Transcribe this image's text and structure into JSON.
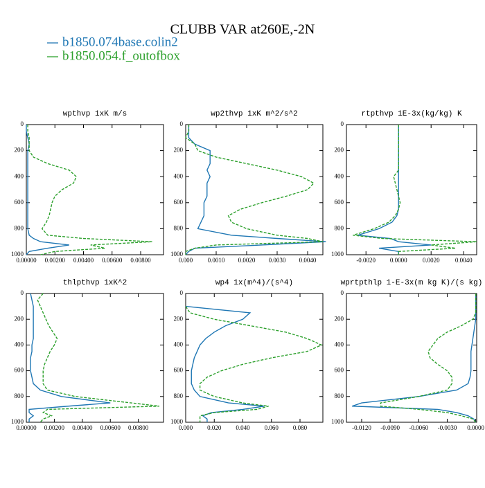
{
  "title": "CLUBB VAR at260E,-2N",
  "legend": [
    {
      "name": "b1850.074base.colin2",
      "color": "#1f77b4",
      "dashed": false
    },
    {
      "name": "b1850.054.f_outofbox",
      "color": "#2ca02c",
      "dashed": true
    }
  ],
  "chart_data": [
    {
      "type": "line",
      "title": "wpthvp   1xK m/s",
      "y": [
        0,
        50,
        100,
        150,
        200,
        250,
        300,
        350,
        400,
        450,
        500,
        550,
        600,
        650,
        700,
        750,
        800,
        850,
        875,
        900,
        925,
        950,
        975,
        1000
      ],
      "xlim": [
        0,
        0.0096
      ],
      "xticks": [
        {
          "value": 0,
          "label": "0.00000"
        },
        {
          "value": 0.002,
          "label": "0.00200"
        },
        {
          "value": 0.004,
          "label": "0.00400"
        },
        {
          "value": 0.006,
          "label": "0.00600"
        },
        {
          "value": 0.008,
          "label": "0.00800"
        }
      ],
      "ylim": [
        1000,
        0
      ],
      "yticks": [
        0,
        200,
        400,
        600,
        800,
        1000
      ],
      "series": [
        {
          "values": [
            0,
            0,
            0.0001,
            0.0002,
            0.0001,
            0.0001,
            0.0001,
            0.0001,
            0.0001,
            0.0001,
            0.0001,
            0.0001,
            0.0001,
            0.0001,
            0.0001,
            0.0001,
            0.0001,
            0.0002,
            0.0005,
            0.001,
            0.003,
            0.0015,
            0.0002,
            0
          ]
        },
        {
          "values": [
            0.0001,
            0.0001,
            0.0002,
            0.0002,
            0.0002,
            0.0005,
            0.0015,
            0.003,
            0.0035,
            0.0033,
            0.0025,
            0.002,
            0.0018,
            0.0017,
            0.0016,
            0.0014,
            0.0011,
            0.0015,
            0.004,
            0.0088,
            0.0045,
            0.0055,
            0.002,
            0.001
          ]
        }
      ]
    },
    {
      "type": "line",
      "title": "wp2thvp   1xK m^2/s^2",
      "y": [
        0,
        50,
        100,
        150,
        200,
        250,
        300,
        350,
        400,
        450,
        500,
        550,
        600,
        650,
        700,
        750,
        800,
        850,
        875,
        900,
        925,
        950,
        975,
        1000
      ],
      "xlim": [
        0,
        0.0045
      ],
      "xticks": [
        {
          "value": 0,
          "label": "0.000"
        },
        {
          "value": 0.001,
          "label": "0.0010"
        },
        {
          "value": 0.002,
          "label": "0.0020"
        },
        {
          "value": 0.003,
          "label": "0.0030"
        },
        {
          "value": 0.004,
          "label": "0.0040"
        }
      ],
      "ylim": [
        1000,
        0
      ],
      "yticks": [
        0,
        200,
        400,
        600,
        800,
        1000
      ],
      "series": [
        {
          "values": [
            0.0001,
            0.0001,
            0.0001,
            0.0003,
            0.0008,
            0.0008,
            0.0008,
            0.0007,
            0.0008,
            0.0007,
            0.0007,
            0.0007,
            0.0006,
            0.0006,
            0.0006,
            0.0005,
            0.0004,
            0.0015,
            0.003,
            0.0046,
            0.0025,
            0.0003,
            0.0001,
            0
          ]
        },
        {
          "values": [
            0.0001,
            0.0001,
            0,
            0.0003,
            0.0004,
            0.001,
            0.002,
            0.003,
            0.0038,
            0.0042,
            0.004,
            0.0033,
            0.0025,
            0.0018,
            0.0014,
            0.0015,
            0.002,
            0.003,
            0.004,
            0.0045,
            0.001,
            0.0003,
            0,
            0
          ]
        }
      ]
    },
    {
      "type": "line",
      "title": "rtpthvp   1E-3x(kg/kg) K",
      "y": [
        0,
        50,
        100,
        150,
        200,
        250,
        300,
        350,
        400,
        450,
        500,
        550,
        600,
        650,
        700,
        750,
        800,
        850,
        875,
        900,
        925,
        950,
        975,
        1000
      ],
      "xlim": [
        -0.0032,
        0.0048
      ],
      "xticks": [
        {
          "value": -0.002,
          "label": "-0.0020"
        },
        {
          "value": 0,
          "label": "0.0000"
        },
        {
          "value": 0.002,
          "label": "0.0020"
        },
        {
          "value": 0.004,
          "label": "0.0040"
        }
      ],
      "ylim": [
        1000,
        0
      ],
      "yticks": [
        0,
        200,
        400,
        600,
        800,
        1000
      ],
      "series": [
        {
          "values": [
            0,
            0,
            0,
            0,
            0,
            0,
            0,
            0,
            0,
            0,
            0,
            0,
            0,
            0,
            -0.0001,
            -0.0004,
            -0.0012,
            -0.0025,
            -0.0005,
            0,
            0.002,
            -0.0012,
            0,
            0
          ]
        },
        {
          "values": [
            0,
            0,
            0,
            0,
            0,
            0,
            0,
            0,
            -0.0003,
            -0.0002,
            -0.0001,
            0,
            0.0001,
            0,
            -0.0002,
            -0.0006,
            -0.0015,
            -0.0028,
            -0.001,
            0.0048,
            0.002,
            0.0035,
            0,
            0
          ]
        }
      ]
    },
    {
      "type": "line",
      "title": "thlpthvp   1xK^2",
      "y": [
        0,
        50,
        100,
        150,
        200,
        250,
        300,
        350,
        400,
        450,
        500,
        550,
        600,
        650,
        700,
        750,
        800,
        850,
        875,
        900,
        925,
        950,
        975,
        1000
      ],
      "xlim": [
        0,
        0.0098
      ],
      "xticks": [
        {
          "value": 0,
          "label": "0.00000"
        },
        {
          "value": 0.002,
          "label": "0.00200"
        },
        {
          "value": 0.004,
          "label": "0.00400"
        },
        {
          "value": 0.006,
          "label": "0.00600"
        },
        {
          "value": 0.008,
          "label": "0.00800"
        }
      ],
      "ylim": [
        1000,
        0
      ],
      "yticks": [
        0,
        200,
        400,
        600,
        800,
        1000
      ],
      "series": [
        {
          "values": [
            0.0003,
            0.0004,
            0.0005,
            0.0005,
            0.0005,
            0.0005,
            0.0005,
            0.0005,
            0.0004,
            0.0004,
            0.0003,
            0.0003,
            0.0003,
            0.0004,
            0.0005,
            0.001,
            0.0025,
            0.006,
            0.003,
            0.0002,
            0.0002,
            0.0005,
            0.0002,
            0.0002
          ]
        },
        {
          "values": [
            0.0012,
            0.0008,
            0.001,
            0.0012,
            0.0014,
            0.0016,
            0.0019,
            0.0022,
            0.002,
            0.0017,
            0.0015,
            0.0013,
            0.0012,
            0.0012,
            0.0012,
            0.0015,
            0.0035,
            0.0075,
            0.0095,
            0.0015,
            0.0012,
            0.0018,
            0.0012,
            0.001
          ]
        }
      ]
    },
    {
      "type": "line",
      "title": "wp4   1x(m^4)/(s^4)",
      "y": [
        0,
        50,
        100,
        150,
        200,
        250,
        300,
        350,
        400,
        450,
        500,
        550,
        600,
        650,
        700,
        750,
        800,
        850,
        875,
        900,
        925,
        950,
        975,
        1000
      ],
      "xlim": [
        0,
        0.096
      ],
      "xticks": [
        {
          "value": 0,
          "label": "0.000"
        },
        {
          "value": 0.02,
          "label": "0.020"
        },
        {
          "value": 0.04,
          "label": "0.040"
        },
        {
          "value": 0.06,
          "label": "0.060"
        },
        {
          "value": 0.08,
          "label": "0.080"
        }
      ],
      "ylim": [
        1000,
        0
      ],
      "yticks": [
        0,
        200,
        400,
        600,
        800,
        1000
      ],
      "series": [
        {
          "values": [
            null,
            null,
            0,
            0.045,
            0.04,
            0.028,
            0.02,
            0.014,
            0.01,
            0.008,
            0.006,
            0.005,
            0.004,
            0.004,
            0.004,
            0.006,
            0.01,
            0.03,
            0.055,
            0.04,
            0.018,
            0.012,
            0.015,
            0.015
          ]
        },
        {
          "values": [
            null,
            null,
            0,
            0.003,
            0.02,
            0.045,
            0.07,
            0.085,
            0.095,
            0.085,
            0.06,
            0.04,
            0.025,
            0.015,
            0.01,
            0.01,
            0.02,
            0.04,
            0.058,
            0.05,
            0.02,
            0.01,
            0.01,
            0.01
          ]
        }
      ]
    },
    {
      "type": "line",
      "title": "wprtpthlp   1-E-3x(m kg K)/(s kg)",
      "y": [
        0,
        50,
        100,
        150,
        200,
        250,
        300,
        350,
        400,
        450,
        500,
        550,
        600,
        650,
        700,
        750,
        800,
        850,
        875,
        900,
        925,
        950,
        975,
        1000
      ],
      "xlim": [
        -0.0136,
        0.0001
      ],
      "xticks": [
        {
          "value": -0.012,
          "label": "-0.0120"
        },
        {
          "value": -0.009,
          "label": "-0.0090"
        },
        {
          "value": -0.006,
          "label": "-0.0060"
        },
        {
          "value": -0.003,
          "label": "-0.0030"
        },
        {
          "value": 0,
          "label": "0.0000"
        }
      ],
      "ylim": [
        1000,
        0
      ],
      "yticks": [
        0,
        200,
        400,
        600,
        800,
        1000
      ],
      "series": [
        {
          "values": [
            0,
            0,
            0,
            0,
            0,
            -0.0001,
            -0.0002,
            -0.0003,
            -0.0004,
            -0.0005,
            -0.0005,
            -0.0005,
            -0.0005,
            -0.0006,
            -0.0008,
            -0.002,
            -0.006,
            -0.012,
            -0.013,
            -0.004,
            -0.002,
            -0.0008,
            -0.0002,
            0
          ]
        },
        {
          "values": [
            0,
            0,
            0,
            0,
            -0.0003,
            -0.0015,
            -0.003,
            -0.004,
            -0.0045,
            -0.005,
            -0.0048,
            -0.004,
            -0.003,
            -0.0025,
            -0.0025,
            -0.003,
            -0.006,
            -0.01,
            -0.01,
            -0.006,
            -0.003,
            -0.0015,
            -0.0003,
            0
          ]
        }
      ]
    }
  ]
}
